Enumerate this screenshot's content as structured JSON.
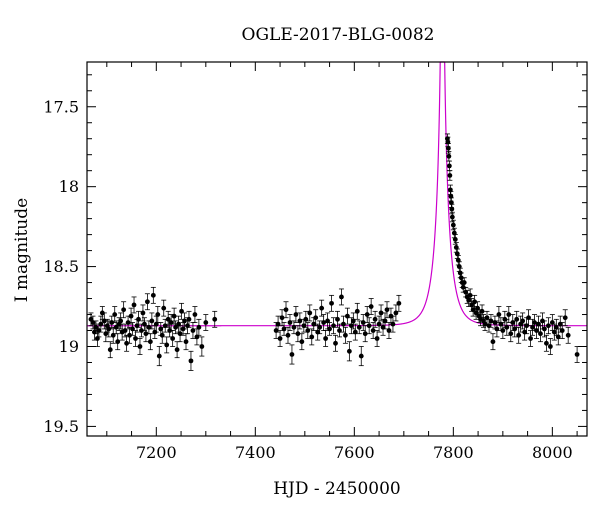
{
  "chart_data": {
    "type": "scatter",
    "title": "OGLE-2017-BLG-0082",
    "xlabel": "HJD - 2450000",
    "ylabel": "I magnitude",
    "xlim": [
      7060,
      8070
    ],
    "ylim": [
      19.56,
      17.22
    ],
    "y_inverted": true,
    "x_ticks": [
      7200,
      7400,
      7600,
      7800,
      8000
    ],
    "y_ticks": [
      17.5,
      18,
      18.5,
      19,
      19.5
    ],
    "grid": false,
    "point_color": "#000000",
    "model_color": "#cc00cc",
    "model": {
      "t0": 7778,
      "u0": 0.03,
      "tE": 26,
      "fs": 0.75,
      "baseline_mag": 18.87
    },
    "observations": {
      "description_of_series": "photometric data points with error bars",
      "points": [
        [
          7068,
          18.83,
          0.04
        ],
        [
          7072,
          18.85,
          0.04
        ],
        [
          7075,
          18.91,
          0.05
        ],
        [
          7078,
          18.88,
          0.04
        ],
        [
          7081,
          18.95,
          0.05
        ],
        [
          7084,
          18.9,
          0.04
        ],
        [
          7088,
          18.86,
          0.05
        ],
        [
          7091,
          18.79,
          0.04
        ],
        [
          7095,
          18.84,
          0.05
        ],
        [
          7098,
          18.92,
          0.05
        ],
        [
          7101,
          18.87,
          0.04
        ],
        [
          7104,
          18.89,
          0.05
        ],
        [
          7107,
          19.02,
          0.05
        ],
        [
          7110,
          18.85,
          0.04
        ],
        [
          7113,
          18.93,
          0.05
        ],
        [
          7116,
          18.8,
          0.05
        ],
        [
          7119,
          18.88,
          0.04
        ],
        [
          7122,
          18.97,
          0.05
        ],
        [
          7125,
          18.86,
          0.04
        ],
        [
          7128,
          18.84,
          0.05
        ],
        [
          7131,
          18.91,
          0.05
        ],
        [
          7134,
          18.77,
          0.05
        ],
        [
          7137,
          18.9,
          0.04
        ],
        [
          7140,
          18.98,
          0.05
        ],
        [
          7143,
          18.85,
          0.04
        ],
        [
          7146,
          18.93,
          0.05
        ],
        [
          7149,
          18.81,
          0.05
        ],
        [
          7152,
          18.89,
          0.04
        ],
        [
          7155,
          18.74,
          0.05
        ],
        [
          7158,
          18.95,
          0.05
        ],
        [
          7161,
          18.87,
          0.04
        ],
        [
          7164,
          18.83,
          0.05
        ],
        [
          7167,
          19.0,
          0.05
        ],
        [
          7170,
          18.9,
          0.04
        ],
        [
          7173,
          18.79,
          0.05
        ],
        [
          7176,
          18.86,
          0.04
        ],
        [
          7179,
          18.92,
          0.05
        ],
        [
          7182,
          18.72,
          0.05
        ],
        [
          7185,
          18.88,
          0.04
        ],
        [
          7188,
          18.97,
          0.05
        ],
        [
          7191,
          18.84,
          0.05
        ],
        [
          7194,
          18.68,
          0.05
        ],
        [
          7197,
          18.91,
          0.04
        ],
        [
          7200,
          18.86,
          0.05
        ],
        [
          7203,
          18.8,
          0.05
        ],
        [
          7206,
          19.06,
          0.06
        ],
        [
          7209,
          18.89,
          0.04
        ],
        [
          7212,
          18.93,
          0.05
        ],
        [
          7215,
          18.76,
          0.05
        ],
        [
          7218,
          18.87,
          0.04
        ],
        [
          7221,
          18.99,
          0.05
        ],
        [
          7224,
          18.83,
          0.05
        ],
        [
          7227,
          18.9,
          0.04
        ],
        [
          7230,
          18.85,
          0.05
        ],
        [
          7233,
          18.95,
          0.05
        ],
        [
          7236,
          18.81,
          0.05
        ],
        [
          7239,
          18.88,
          0.04
        ],
        [
          7242,
          19.02,
          0.05
        ],
        [
          7245,
          18.86,
          0.05
        ],
        [
          7248,
          18.92,
          0.05
        ],
        [
          7251,
          18.78,
          0.05
        ],
        [
          7254,
          18.89,
          0.04
        ],
        [
          7257,
          18.84,
          0.05
        ],
        [
          7260,
          18.97,
          0.05
        ],
        [
          7263,
          18.87,
          0.05
        ],
        [
          7266,
          18.83,
          0.05
        ],
        [
          7270,
          19.09,
          0.06
        ],
        [
          7274,
          18.9,
          0.05
        ],
        [
          7278,
          18.8,
          0.05
        ],
        [
          7282,
          18.94,
          0.05
        ],
        [
          7286,
          18.88,
          0.05
        ],
        [
          7292,
          19.0,
          0.06
        ],
        [
          7300,
          18.85,
          0.05
        ],
        [
          7318,
          18.83,
          0.05
        ],
        [
          7442,
          18.9,
          0.05
        ],
        [
          7446,
          18.86,
          0.05
        ],
        [
          7450,
          18.95,
          0.05
        ],
        [
          7454,
          18.82,
          0.05
        ],
        [
          7458,
          18.89,
          0.04
        ],
        [
          7462,
          18.77,
          0.05
        ],
        [
          7466,
          18.93,
          0.05
        ],
        [
          7470,
          18.85,
          0.05
        ],
        [
          7474,
          19.05,
          0.06
        ],
        [
          7478,
          18.88,
          0.04
        ],
        [
          7482,
          18.8,
          0.05
        ],
        [
          7486,
          18.92,
          0.05
        ],
        [
          7490,
          18.84,
          0.05
        ],
        [
          7494,
          18.97,
          0.05
        ],
        [
          7498,
          18.87,
          0.04
        ],
        [
          7502,
          18.83,
          0.05
        ],
        [
          7506,
          18.9,
          0.05
        ],
        [
          7510,
          18.79,
          0.05
        ],
        [
          7514,
          18.94,
          0.05
        ],
        [
          7518,
          18.86,
          0.04
        ],
        [
          7522,
          18.82,
          0.05
        ],
        [
          7526,
          18.91,
          0.05
        ],
        [
          7530,
          18.88,
          0.04
        ],
        [
          7534,
          18.76,
          0.05
        ],
        [
          7538,
          18.85,
          0.05
        ],
        [
          7542,
          18.95,
          0.05
        ],
        [
          7546,
          18.84,
          0.05
        ],
        [
          7550,
          18.89,
          0.04
        ],
        [
          7554,
          18.73,
          0.05
        ],
        [
          7558,
          18.87,
          0.05
        ],
        [
          7562,
          18.98,
          0.05
        ],
        [
          7566,
          18.83,
          0.05
        ],
        [
          7570,
          18.9,
          0.04
        ],
        [
          7574,
          18.69,
          0.05
        ],
        [
          7578,
          18.86,
          0.05
        ],
        [
          7582,
          18.93,
          0.05
        ],
        [
          7586,
          18.81,
          0.05
        ],
        [
          7590,
          19.03,
          0.06
        ],
        [
          7594,
          18.87,
          0.05
        ],
        [
          7598,
          18.84,
          0.05
        ],
        [
          7602,
          18.91,
          0.05
        ],
        [
          7606,
          18.78,
          0.05
        ],
        [
          7610,
          18.88,
          0.04
        ],
        [
          7614,
          19.06,
          0.06
        ],
        [
          7618,
          18.85,
          0.05
        ],
        [
          7622,
          18.92,
          0.05
        ],
        [
          7626,
          18.8,
          0.05
        ],
        [
          7630,
          18.87,
          0.05
        ],
        [
          7634,
          18.75,
          0.05
        ],
        [
          7638,
          18.9,
          0.05
        ],
        [
          7642,
          18.83,
          0.05
        ],
        [
          7646,
          18.95,
          0.05
        ],
        [
          7650,
          18.86,
          0.05
        ],
        [
          7654,
          18.79,
          0.05
        ],
        [
          7658,
          18.88,
          0.05
        ],
        [
          7662,
          18.84,
          0.05
        ],
        [
          7666,
          18.77,
          0.05
        ],
        [
          7670,
          18.9,
          0.05
        ],
        [
          7674,
          18.81,
          0.05
        ],
        [
          7678,
          18.86,
          0.05
        ],
        [
          7684,
          18.79,
          0.05
        ],
        [
          7690,
          18.73,
          0.05
        ],
        [
          7788,
          17.7,
          0.03
        ],
        [
          7789,
          17.72,
          0.03
        ],
        [
          7790,
          17.76,
          0.03
        ],
        [
          7791,
          17.81,
          0.03
        ],
        [
          7792,
          17.87,
          0.03
        ],
        [
          7793,
          17.93,
          0.03
        ],
        [
          7794,
          18.02,
          0.03
        ],
        [
          7795,
          18.06,
          0.03
        ],
        [
          7796,
          18.1,
          0.03
        ],
        [
          7797,
          18.14,
          0.03
        ],
        [
          7798,
          18.19,
          0.03
        ],
        [
          7800,
          18.24,
          0.03
        ],
        [
          7802,
          18.29,
          0.03
        ],
        [
          7804,
          18.33,
          0.03
        ],
        [
          7806,
          18.38,
          0.03
        ],
        [
          7808,
          18.42,
          0.03
        ],
        [
          7810,
          18.46,
          0.03
        ],
        [
          7812,
          18.5,
          0.03
        ],
        [
          7814,
          18.54,
          0.03
        ],
        [
          7816,
          18.57,
          0.03
        ],
        [
          7818,
          18.6,
          0.03
        ],
        [
          7820,
          18.63,
          0.03
        ],
        [
          7822,
          18.6,
          0.03
        ],
        [
          7825,
          18.66,
          0.03
        ],
        [
          7828,
          18.69,
          0.04
        ],
        [
          7831,
          18.71,
          0.04
        ],
        [
          7834,
          18.68,
          0.04
        ],
        [
          7837,
          18.74,
          0.04
        ],
        [
          7840,
          18.77,
          0.04
        ],
        [
          7843,
          18.72,
          0.04
        ],
        [
          7846,
          18.79,
          0.04
        ],
        [
          7849,
          18.76,
          0.04
        ],
        [
          7852,
          18.81,
          0.04
        ],
        [
          7855,
          18.83,
          0.04
        ],
        [
          7858,
          18.78,
          0.04
        ],
        [
          7861,
          18.84,
          0.04
        ],
        [
          7864,
          18.86,
          0.04
        ],
        [
          7868,
          18.82,
          0.04
        ],
        [
          7872,
          18.87,
          0.04
        ],
        [
          7876,
          18.84,
          0.04
        ],
        [
          7880,
          18.97,
          0.05
        ],
        [
          7884,
          18.85,
          0.04
        ],
        [
          7888,
          18.89,
          0.05
        ],
        [
          7892,
          18.8,
          0.05
        ],
        [
          7896,
          18.86,
          0.04
        ],
        [
          7900,
          18.9,
          0.05
        ],
        [
          7904,
          18.83,
          0.05
        ],
        [
          7908,
          18.88,
          0.05
        ],
        [
          7912,
          18.8,
          0.05
        ],
        [
          7916,
          18.92,
          0.05
        ],
        [
          7920,
          18.85,
          0.05
        ],
        [
          7924,
          18.89,
          0.05
        ],
        [
          7928,
          18.83,
          0.05
        ],
        [
          7932,
          18.93,
          0.05
        ],
        [
          7936,
          18.86,
          0.05
        ],
        [
          7940,
          18.84,
          0.05
        ],
        [
          7944,
          18.91,
          0.05
        ],
        [
          7948,
          18.87,
          0.05
        ],
        [
          7952,
          18.82,
          0.05
        ],
        [
          7956,
          18.95,
          0.05
        ],
        [
          7960,
          18.88,
          0.05
        ],
        [
          7964,
          18.85,
          0.05
        ],
        [
          7968,
          18.9,
          0.05
        ],
        [
          7972,
          18.86,
          0.05
        ],
        [
          7976,
          18.92,
          0.05
        ],
        [
          7980,
          18.84,
          0.05
        ],
        [
          7984,
          18.89,
          0.05
        ],
        [
          7988,
          18.98,
          0.05
        ],
        [
          7992,
          18.87,
          0.05
        ],
        [
          7996,
          19.0,
          0.05
        ],
        [
          8000,
          18.85,
          0.05
        ],
        [
          8004,
          18.91,
          0.05
        ],
        [
          8008,
          18.88,
          0.05
        ],
        [
          8012,
          18.94,
          0.05
        ],
        [
          8016,
          18.86,
          0.05
        ],
        [
          8020,
          18.9,
          0.05
        ],
        [
          8026,
          18.82,
          0.05
        ],
        [
          8032,
          18.93,
          0.05
        ],
        [
          8050,
          19.05,
          0.05
        ]
      ]
    }
  }
}
